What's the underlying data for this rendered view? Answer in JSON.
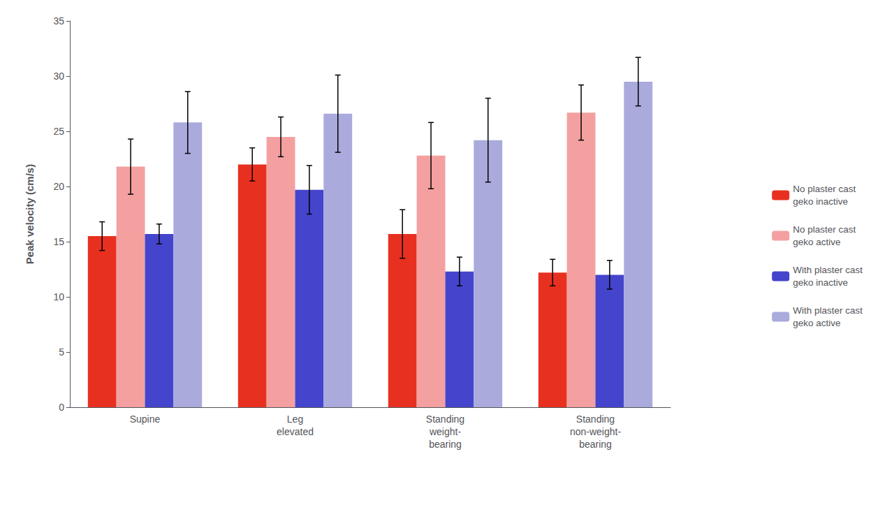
{
  "chart_data": {
    "type": "bar",
    "categories": [
      "Supine",
      "Leg\nelevated",
      "Standing\nweight-\nbearing",
      "Standing\nnon-weight-\nbearing"
    ],
    "series": [
      {
        "name": "No plaster cast\ngeko inactive",
        "color": "#e83020",
        "values": [
          15.5,
          22.0,
          15.7,
          12.2
        ],
        "errors": [
          1.3,
          1.5,
          2.2,
          1.2
        ]
      },
      {
        "name": "No plaster cast\ngeko active",
        "color": "#f4a0a0",
        "values": [
          21.8,
          24.5,
          22.8,
          26.7
        ],
        "errors": [
          2.5,
          1.8,
          3.0,
          2.5
        ]
      },
      {
        "name": "With plaster cast\ngeko inactive",
        "color": "#4444cc",
        "values": [
          15.7,
          19.7,
          12.3,
          12.0
        ],
        "errors": [
          0.9,
          2.2,
          1.3,
          1.3
        ]
      },
      {
        "name": "With plaster cast\ngeko active",
        "color": "#aaaadd",
        "values": [
          25.8,
          26.6,
          24.2,
          29.5
        ],
        "errors": [
          2.8,
          3.5,
          3.8,
          2.2
        ]
      }
    ],
    "ylabel": "Peak velocity (cm/s)",
    "ylim": [
      0,
      35
    ],
    "yticks": [
      0,
      5,
      10,
      15,
      20,
      25,
      30,
      35
    ],
    "grid": false,
    "legend": "right"
  }
}
